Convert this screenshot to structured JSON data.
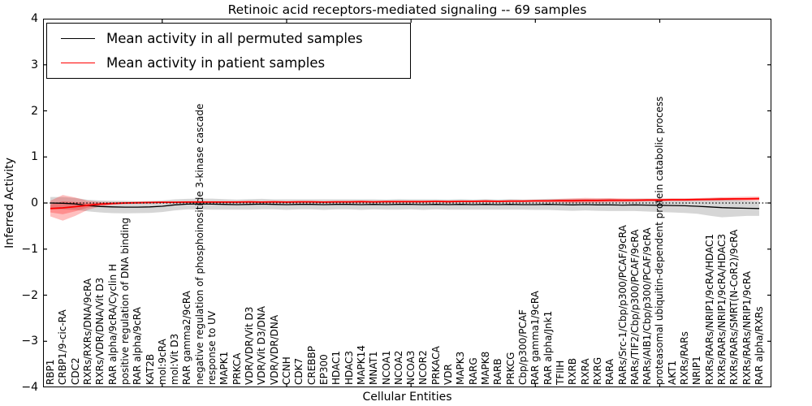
{
  "figure": {
    "title": "Retinoic acid receptors-mediated signaling -- 69 samples",
    "xlabel": "Cellular Entities",
    "ylabel": "Inferred Activity"
  },
  "legend": {
    "items": [
      {
        "label": "Mean activity in all permuted samples",
        "color": "#000000"
      },
      {
        "label": "Mean activity in patient samples",
        "color": "#ff0000"
      }
    ]
  },
  "chart_data": {
    "type": "line",
    "title": "Retinoic acid receptors-mediated signaling -- 69 samples",
    "xlabel": "Cellular Entities",
    "ylabel": "Inferred Activity",
    "ylim": [
      -4,
      4
    ],
    "yticks": [
      4,
      3,
      2,
      1,
      0,
      -1,
      -2,
      -3,
      -4
    ],
    "x_tick_values": [
      10,
      20,
      30,
      40,
      50
    ],
    "grid": false,
    "legend_position": "upper left",
    "zero_line": {
      "value": 0,
      "style": "dotted",
      "color": "#000000"
    },
    "categories": [
      "RBP1",
      "CRBP1/9-cic-RA",
      "CDC2",
      "RXRs/RXRs/DNA/9cRA",
      "RXRs/VDR/DNA/Vit D3",
      "RAR alpha/9cRA/Cyclin H",
      "positive regulation of DNA binding",
      "RAR alpha/9cRA",
      "KAT2B",
      "mol:9cRA",
      "mol:Vit D3",
      "RAR gamma2/9cRA",
      "negative regulation of phosphoinositide 3-kinase cascade",
      "response to UV",
      "MAPK1",
      "PRKCA",
      "VDR/VDR/Vit D3",
      "VDR/Vit D3/DNA",
      "VDR/VDR/DNA",
      "CCNH",
      "CDK7",
      "CREBBP",
      "EP300",
      "HDAC1",
      "HDAC3",
      "MAPK14",
      "MNAT1",
      "NCOA1",
      "NCOA2",
      "NCOA3",
      "NCOR2",
      "PRKACA",
      "VDR",
      "MAPK3",
      "RARG",
      "MAPK8",
      "RARB",
      "PRKCG",
      "Cbp/p300/PCAF",
      "RAR gamma1/9cRA",
      "RAR alpha/Jnk1",
      "TFIIH",
      "RXRB",
      "RXRA",
      "RXRG",
      "RARA",
      "RARs/Src-1/Cbp/p300/PCAF/9cRA",
      "RARs/TIF2/Cbp/p300/PCAF/9cRA",
      "RARs/AIB1/Cbp/p300/PCAF/9cRA",
      "proteasomal ubiquitin-dependent protein catabolic process",
      "AKT1",
      "RXRs/RARs",
      "NRIP1",
      "RXRs/RARs/NRIP1/9cRA/HDAC1",
      "RXRs/RARs/NRIP1/9cRA/HDAC3",
      "RXRs/RARs/SMRT(N-CoR2)/9cRA",
      "RXRs/RARs/NRIP1/9cRA",
      "RAR alpha/RXRs"
    ],
    "series": [
      {
        "name": "Mean activity in all permuted samples",
        "line_color": "#000000",
        "band_color": "rgba(0,0,0,0.16)",
        "values": [
          0.0,
          -0.005,
          -0.02,
          -0.055,
          -0.075,
          -0.085,
          -0.09,
          -0.09,
          -0.085,
          -0.07,
          -0.04,
          -0.025,
          -0.02,
          -0.025,
          -0.03,
          -0.035,
          -0.03,
          -0.025,
          -0.03,
          -0.035,
          -0.03,
          -0.03,
          -0.035,
          -0.03,
          -0.03,
          -0.035,
          -0.03,
          -0.035,
          -0.03,
          -0.03,
          -0.035,
          -0.03,
          -0.035,
          -0.03,
          -0.035,
          -0.03,
          -0.035,
          -0.03,
          -0.035,
          -0.035,
          -0.03,
          -0.035,
          -0.04,
          -0.035,
          -0.04,
          -0.04,
          -0.045,
          -0.04,
          -0.045,
          -0.05,
          -0.055,
          -0.06,
          -0.07,
          -0.085,
          -0.1,
          -0.11,
          -0.115,
          -0.12
        ],
        "std": [
          0.13,
          0.135,
          0.13,
          0.125,
          0.13,
          0.135,
          0.135,
          0.13,
          0.13,
          0.125,
          0.12,
          0.115,
          0.115,
          0.12,
          0.115,
          0.11,
          0.115,
          0.115,
          0.11,
          0.115,
          0.11,
          0.11,
          0.115,
          0.11,
          0.11,
          0.115,
          0.11,
          0.11,
          0.115,
          0.11,
          0.115,
          0.11,
          0.11,
          0.115,
          0.11,
          0.115,
          0.11,
          0.115,
          0.11,
          0.115,
          0.12,
          0.125,
          0.13,
          0.125,
          0.13,
          0.135,
          0.13,
          0.135,
          0.14,
          0.145,
          0.15,
          0.155,
          0.165,
          0.19,
          0.21,
          0.185,
          0.165,
          0.16
        ]
      },
      {
        "name": "Mean activity in patient samples",
        "line_color": "#ff0000",
        "band_color": "rgba(255,0,0,0.25)",
        "values": [
          -0.12,
          -0.105,
          -0.08,
          -0.05,
          -0.025,
          -0.01,
          0.0,
          0.005,
          0.01,
          0.015,
          0.015,
          0.02,
          0.02,
          0.02,
          0.02,
          0.02,
          0.025,
          0.02,
          0.025,
          0.02,
          0.025,
          0.025,
          0.02,
          0.025,
          0.025,
          0.03,
          0.025,
          0.03,
          0.03,
          0.03,
          0.03,
          0.035,
          0.03,
          0.035,
          0.035,
          0.04,
          0.035,
          0.04,
          0.04,
          0.045,
          0.045,
          0.05,
          0.05,
          0.055,
          0.055,
          0.06,
          0.06,
          0.06,
          0.065,
          0.065,
          0.07,
          0.07,
          0.075,
          0.08,
          0.085,
          0.09,
          0.09,
          0.095
        ],
        "std": [
          0.17,
          0.28,
          0.2,
          0.1,
          0.05,
          0.03,
          0.025,
          0.02,
          0.02,
          0.02,
          0.02,
          0.02,
          0.02,
          0.02,
          0.02,
          0.02,
          0.02,
          0.02,
          0.02,
          0.02,
          0.02,
          0.02,
          0.02,
          0.02,
          0.02,
          0.02,
          0.02,
          0.02,
          0.02,
          0.02,
          0.02,
          0.02,
          0.02,
          0.02,
          0.02,
          0.02,
          0.02,
          0.02,
          0.02,
          0.025,
          0.03,
          0.04,
          0.05,
          0.055,
          0.05,
          0.045,
          0.04,
          0.035,
          0.03,
          0.03,
          0.03,
          0.03,
          0.03,
          0.035,
          0.04,
          0.04,
          0.045,
          0.045
        ]
      }
    ]
  }
}
